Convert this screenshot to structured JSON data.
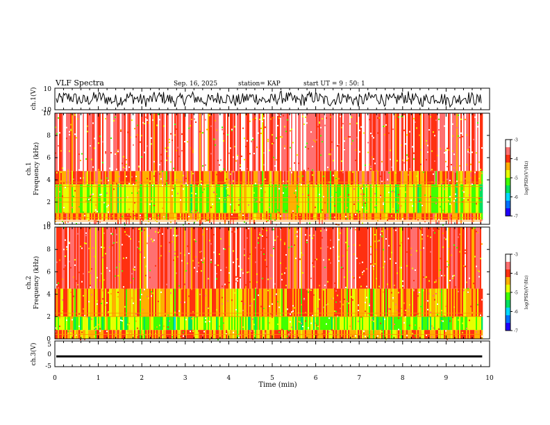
{
  "header": {
    "title": "VLF Spectra",
    "date": "Sep. 16, 2025",
    "station": "station= KAP",
    "start": "start  UT =   9 : 50: 1"
  },
  "colors": {
    "background": "#ffffff",
    "axis": "#000000",
    "trace": "#000000",
    "colormap": [
      "#1e00ff",
      "#0070ff",
      "#00d8ff",
      "#00e060",
      "#40ff00",
      "#e8ff00",
      "#ffb000",
      "#ff3010",
      "#ff7070",
      "#ffffff"
    ]
  },
  "chart_data": [
    {
      "type": "line",
      "panel": "ch1_waveform",
      "ylabel": "ch.1(V)",
      "ylim": [
        -10,
        10
      ],
      "yticks": [
        "10",
        "-10"
      ],
      "description_values": {
        "center": 0.0,
        "amplitude": 3
      }
    },
    {
      "type": "heatmap",
      "panel": "ch1_spectrogram",
      "ylabel_line1": "ch.1",
      "ylabel_line2": "Frequency  (kHz)",
      "ylim": [
        0,
        10
      ],
      "yticks": [
        "0",
        "2",
        "4",
        "6",
        "8",
        "10"
      ],
      "colorbar": {
        "label": "log(PSD)(V²/Hz)",
        "range": [
          -7,
          -3
        ],
        "ticks": [
          "-3",
          "-4",
          "-5",
          "-6",
          "-7"
        ]
      },
      "bands_khz": [
        {
          "from": 0.0,
          "to": 0.4,
          "level": -3.0
        },
        {
          "from": 0.4,
          "to": 1.0,
          "level": -4.2
        },
        {
          "from": 1.0,
          "to": 3.6,
          "level": -4.8
        },
        {
          "from": 3.6,
          "to": 4.8,
          "level": -4.1
        },
        {
          "from": 4.8,
          "to": 10.0,
          "level": -3.6
        }
      ],
      "lines_khz": [
        0.3,
        0.6,
        1.0,
        2.0,
        2.4,
        3.4,
        3.8
      ]
    },
    {
      "type": "heatmap",
      "panel": "ch2_spectrogram",
      "ylabel_line1": "ch.2",
      "ylabel_line2": "Frequency  (kHz)",
      "ylim": [
        0,
        10
      ],
      "yticks": [
        "0",
        "2",
        "4",
        "6",
        "8",
        "10"
      ],
      "colorbar": {
        "label": "log(PSD)(V²/Hz)",
        "range": [
          -7,
          -3
        ],
        "ticks": [
          "-3",
          "-4",
          "-5",
          "-6",
          "-7"
        ]
      },
      "bands_khz": [
        {
          "from": 0.0,
          "to": 0.8,
          "level": -4.3
        },
        {
          "from": 0.8,
          "to": 2.0,
          "level": -5.0
        },
        {
          "from": 2.0,
          "to": 4.5,
          "level": -4.3
        },
        {
          "from": 4.5,
          "to": 10.0,
          "level": -3.8
        }
      ],
      "lines_khz": [
        0.4,
        2.0,
        2.3
      ]
    },
    {
      "type": "line",
      "panel": "ch3_waveform",
      "ylabel": "ch.3(V)",
      "ylim": [
        -5,
        5
      ],
      "yticks": [
        "5",
        "0",
        "-5"
      ],
      "description_values": {
        "center": -1.0,
        "amplitude": 0.4
      }
    }
  ],
  "xaxis": {
    "label": "Time  (min)",
    "xlim": [
      0,
      10
    ],
    "ticks": [
      "0",
      "1",
      "2",
      "3",
      "4",
      "5",
      "6",
      "7",
      "8",
      "9",
      "10"
    ],
    "data_end": 9.83
  }
}
